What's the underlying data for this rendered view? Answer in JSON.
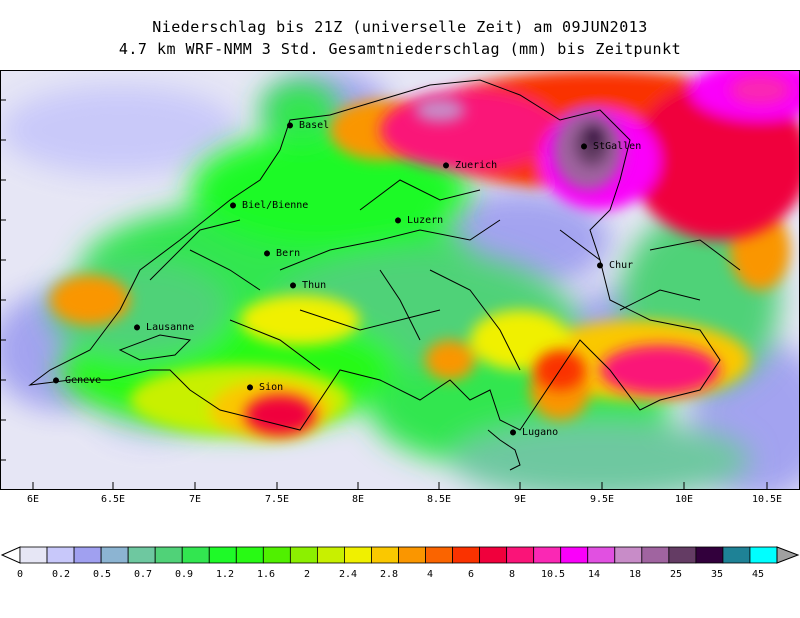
{
  "title_line1": "Niederschlag bis 21Z (universelle Zeit) am 09JUN2013",
  "title_line2": "4.7 km WRF-NMM 3 Std. Gesamtniederschlag (mm) bis Zeitpunkt",
  "longitude_labels": [
    "6E",
    "6.5E",
    "7E",
    "7.5E",
    "8E",
    "8.5E",
    "9E",
    "9.5E",
    "10E",
    "10.5E"
  ],
  "cities": [
    {
      "id": "basel",
      "name": "Basel"
    },
    {
      "id": "zuerich",
      "name": "Zuerich"
    },
    {
      "id": "stgallen",
      "name": "StGallen"
    },
    {
      "id": "biel",
      "name": "Biel/Bienne"
    },
    {
      "id": "luzern",
      "name": "Luzern"
    },
    {
      "id": "bern",
      "name": "Bern"
    },
    {
      "id": "chur",
      "name": "Chur"
    },
    {
      "id": "thun",
      "name": "Thun"
    },
    {
      "id": "lausanne",
      "name": "Lausanne"
    },
    {
      "id": "geneve",
      "name": "Geneve"
    },
    {
      "id": "sion",
      "name": "Sion"
    },
    {
      "id": "lugano",
      "name": "Lugano"
    }
  ],
  "colorbar": {
    "unit": "mm",
    "labels": [
      "0",
      "0.2",
      "0.5",
      "0.7",
      "0.9",
      "1.2",
      "1.6",
      "2",
      "2.4",
      "2.8",
      "4",
      "6",
      "8",
      "10.5",
      "14",
      "18",
      "25",
      "35",
      "45"
    ],
    "colors": [
      "#e6e6f5",
      "#c8c8fa",
      "#a0a0f0",
      "#8cb4d2",
      "#6ec8a0",
      "#50d278",
      "#32e650",
      "#1efa28",
      "#28fa14",
      "#50f000",
      "#8cf000",
      "#c8f000",
      "#f0f000",
      "#fac800",
      "#fa9600",
      "#fa6400",
      "#fa3200",
      "#f0003c",
      "#fa1478",
      "#fa28b4",
      "#fa00fa",
      "#e150e1",
      "#c88cc8",
      "#a064a0",
      "#643c64",
      "#32003c",
      "#1e8296",
      "#00ffff"
    ]
  }
}
